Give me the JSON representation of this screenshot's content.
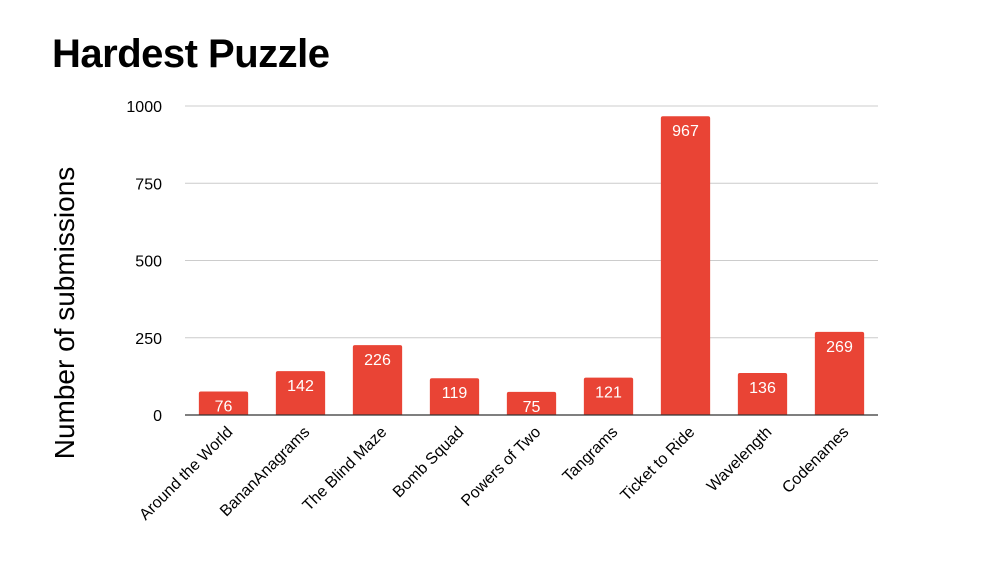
{
  "chart_data": {
    "type": "bar",
    "title": "Hardest Puzzle",
    "xlabel": "",
    "ylabel": "Number of submissions",
    "categories": [
      "Around the World",
      "BananAnagrams",
      "The Blind Maze",
      "Bomb Squad",
      "Powers of Two",
      "Tangrams",
      "Ticket to Ride",
      "Wavelength",
      "Codenames"
    ],
    "values": [
      76,
      142,
      226,
      119,
      75,
      121,
      967,
      136,
      269
    ],
    "ylim": [
      0,
      1000
    ],
    "yticks": [
      0,
      250,
      500,
      750,
      1000
    ],
    "grid": true,
    "legend": "none",
    "data_labels": true,
    "colors": {
      "bar": "#e94435",
      "grid": "#cccccc",
      "axis": "#333333",
      "label_inside": "#ffffff"
    }
  }
}
